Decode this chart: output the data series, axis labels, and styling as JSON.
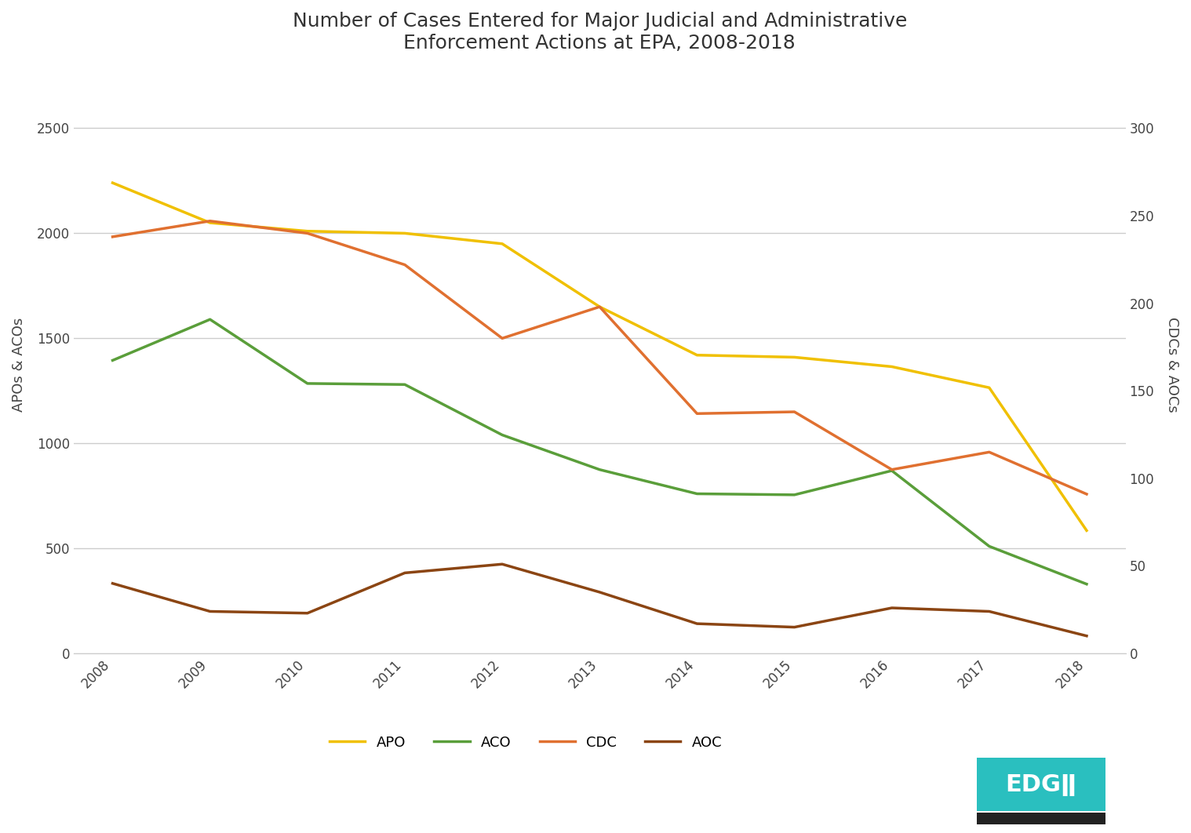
{
  "title": "Number of Cases Entered for Major Judicial and Administrative\nEnforcement Actions at EPA, 2008-2018",
  "years": [
    2008,
    2009,
    2010,
    2011,
    2012,
    2013,
    2014,
    2015,
    2016,
    2017,
    2018
  ],
  "APO": [
    2240,
    2050,
    2010,
    2000,
    1950,
    1650,
    1420,
    1410,
    1365,
    1265,
    585
  ],
  "ACO": [
    1395,
    1590,
    1285,
    1280,
    1040,
    875,
    760,
    755,
    870,
    510,
    330
  ],
  "CDC": [
    238,
    247,
    240,
    222,
    180,
    198,
    137,
    138,
    105,
    115,
    91
  ],
  "AOC": [
    40,
    24,
    23,
    46,
    51,
    35,
    17,
    15,
    26,
    24,
    10
  ],
  "APO_color": "#f0c000",
  "ACO_color": "#5a9e3a",
  "CDC_color": "#e07030",
  "AOC_color": "#8b4513",
  "ylabel_left": "APOs & ACOs",
  "ylabel_right": "CDCs & AOCs",
  "ylim_left": [
    0,
    2750
  ],
  "ylim_right": [
    0,
    330
  ],
  "yticks_left": [
    0,
    500,
    1000,
    1500,
    2000,
    2500
  ],
  "yticks_right": [
    0,
    50,
    100,
    150,
    200,
    250,
    300
  ],
  "background_color": "#ffffff",
  "grid_color": "#cccccc",
  "title_fontsize": 18,
  "axis_label_fontsize": 13,
  "tick_fontsize": 12,
  "legend_fontsize": 13,
  "line_width": 2.5
}
